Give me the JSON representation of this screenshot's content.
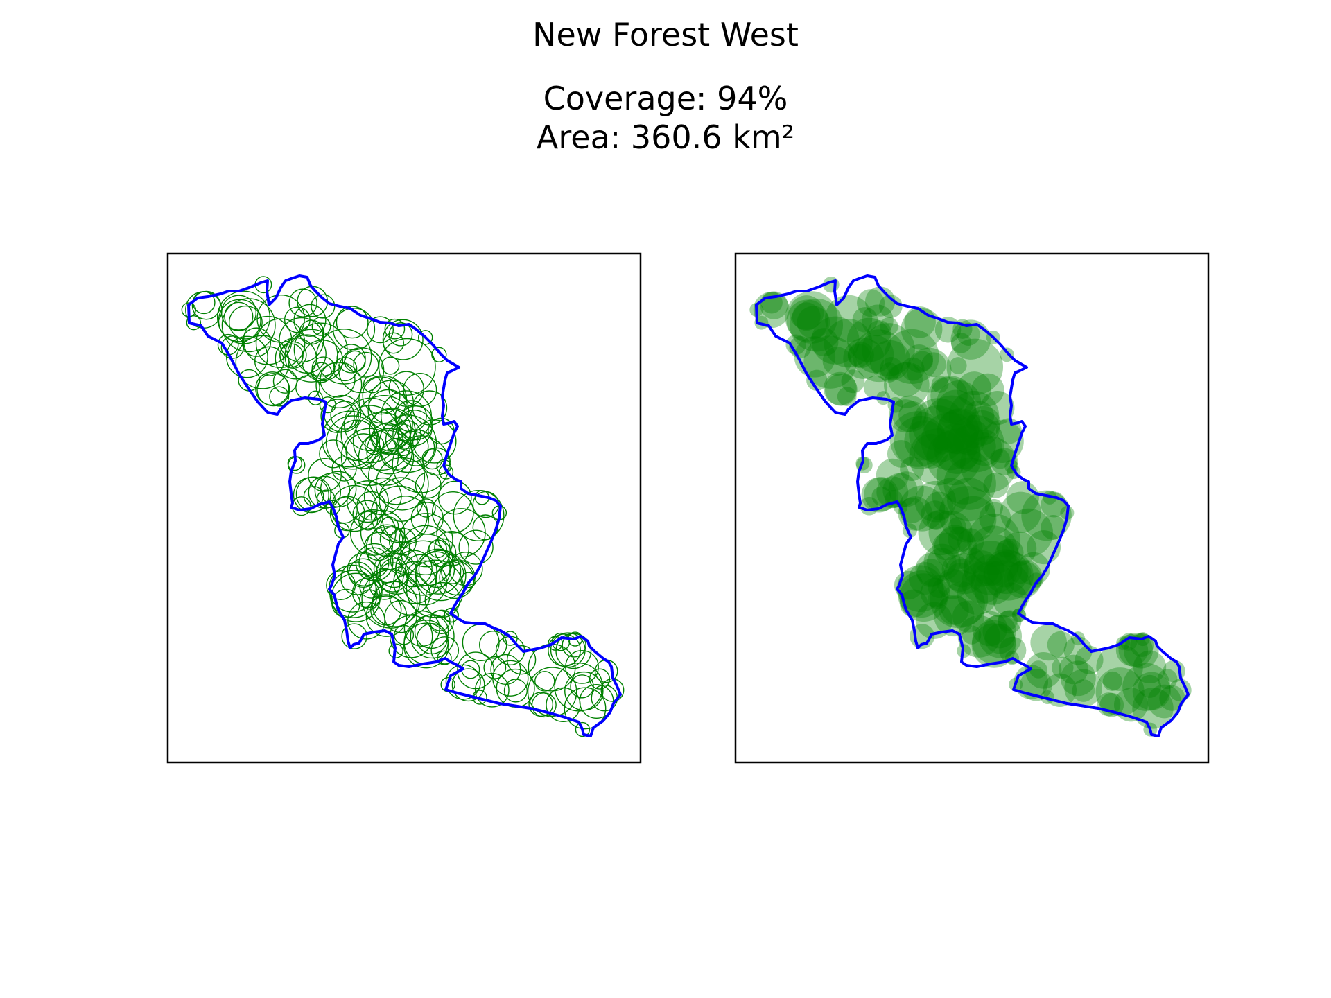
{
  "figure": {
    "title": "New Forest West",
    "coverage_text": "Coverage: 94%",
    "area_text": "Area: 360.6 km²"
  },
  "colors": {
    "boundary": "#0000ff",
    "circles": "#008000",
    "frame": "#000000"
  },
  "panels": [
    {
      "id": "outline-circles",
      "style": "outlined circles"
    },
    {
      "id": "filled-circles",
      "style": "filled semi-transparent circles"
    }
  ]
}
